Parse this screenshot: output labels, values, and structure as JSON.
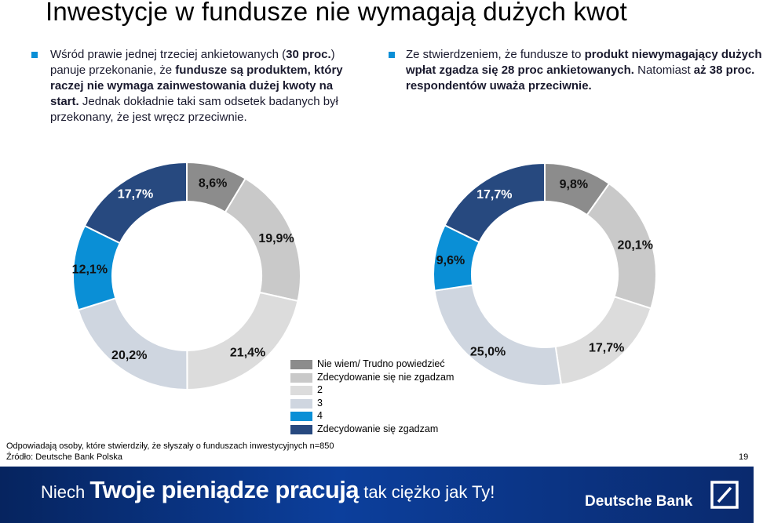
{
  "title": "Inwestycje w fundusze nie wymagają dużych kwot",
  "bullet1": {
    "t1": "Wśród prawie jednej trzeciej ankietowanych (",
    "t2": "30 proc.",
    "t3": ") panuje przekonanie, że ",
    "t4": "fundusze są produktem, który raczej nie wymaga zainwestowania dużej kwoty na start.",
    "t5": " Jednak dokładnie taki sam odsetek badanych był przekonany, że jest wręcz przeciwnie."
  },
  "bullet2": {
    "t1": "Ze stwierdzeniem, że fundusze to ",
    "t2": "produkt niewymagający dużych wpłat zgadza się 28 proc ankietowanych.",
    "t3": " Natomiast ",
    "t4": "aż 38 proc. respondentów uważa przeciwnie."
  },
  "chart_data": [
    {
      "type": "pie",
      "donut": true,
      "categories": [
        "Nie wiem/ Trudno powiedzieć",
        "Zdecydowanie się nie zgadzam",
        "2",
        "3",
        "4",
        "Zdecydowanie się zgadzam"
      ],
      "values": [
        8.6,
        19.9,
        21.4,
        20.2,
        12.1,
        17.7
      ],
      "labels": [
        "8,6%",
        "19,9%",
        "21,4%",
        "20,2%",
        "12,1%",
        "17,7%"
      ]
    },
    {
      "type": "pie",
      "donut": true,
      "categories": [
        "Nie wiem/ Trudno powiedzieć",
        "Zdecydowanie się nie zgadzam",
        "2",
        "3",
        "4",
        "Zdecydowanie się zgadzam"
      ],
      "values": [
        9.8,
        20.1,
        17.7,
        25.0,
        9.6,
        17.7
      ],
      "labels": [
        "9,8%",
        "20,1%",
        "17,7%",
        "25,0%",
        "9,6%",
        "17,7%"
      ]
    }
  ],
  "colors": [
    "#8c8c8c",
    "#c9c9c9",
    "#dcdcdc",
    "#cfd6e0",
    "#0a8fd6",
    "#27497f"
  ],
  "legend": [
    {
      "label": "Nie wiem/ Trudno powiedzieć",
      "color": "#8c8c8c"
    },
    {
      "label": "Zdecydowanie się nie zgadzam",
      "color": "#c9c9c9"
    },
    {
      "label": "2",
      "color": "#dcdcdc"
    },
    {
      "label": "3",
      "color": "#cfd6e0"
    },
    {
      "label": "4",
      "color": "#0a8fd6"
    },
    {
      "label": "Zdecydowanie się zgadzam",
      "color": "#27497f"
    }
  ],
  "footnote1": "Odpowiadają osoby, które stwierdziły, że słyszały o funduszach inwestycyjnych  n=850",
  "footnote2": "Źródło: Deutsche Bank Polska",
  "page_number": "19",
  "banner": {
    "s1": "Niech ",
    "s2": "Twoje pieniądze pracują",
    "s3": " tak ciężko jak Ty!",
    "bank": "Deutsche Bank"
  }
}
